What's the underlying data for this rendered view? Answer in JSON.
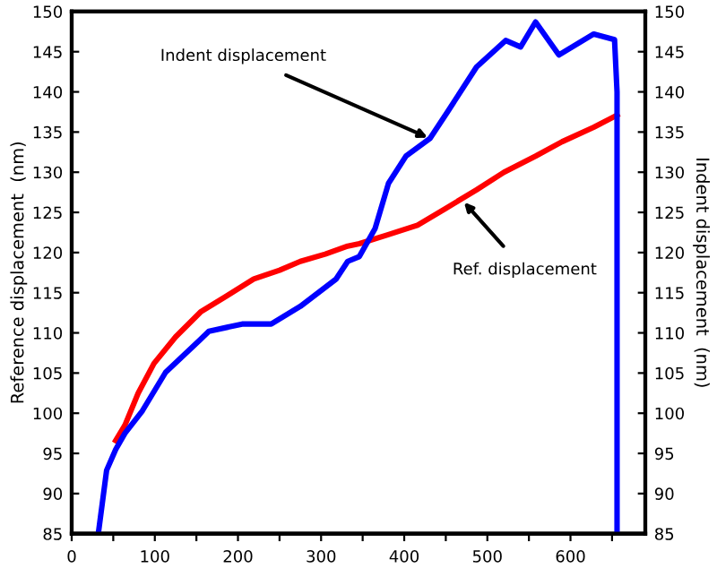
{
  "chart_data": {
    "type": "line",
    "ylabel": "Reference displacement  (nm)",
    "y2label": "Indent displacement  (nm)",
    "xlim": [
      0,
      690
    ],
    "ylim": [
      85,
      150
    ],
    "y2lim": [
      85,
      150
    ],
    "xticks": [
      0,
      {
        "value": 50,
        "label": null
      },
      100,
      {
        "value": 150,
        "label": null
      },
      200,
      {
        "value": 250,
        "label": null
      },
      300,
      {
        "value": 350,
        "label": null
      },
      400,
      {
        "value": 450,
        "label": null
      },
      500,
      {
        "value": 550,
        "label": null
      },
      600,
      {
        "value": 650,
        "label": null
      }
    ],
    "yticks": [
      85,
      90,
      95,
      100,
      105,
      110,
      115,
      120,
      125,
      130,
      135,
      140,
      145,
      150
    ],
    "y2ticks": [
      85,
      90,
      95,
      100,
      105,
      110,
      115,
      120,
      125,
      130,
      135,
      140,
      145,
      150
    ],
    "grid": false,
    "marker": "none",
    "line_style": "solid",
    "series": [
      {
        "color": "#ff0000",
        "x": [
          53,
          64,
          80,
          99,
          125,
          155,
          185,
          219,
          250,
          275,
          305,
          332,
          346,
          380,
          416,
          450,
          487,
          520,
          558,
          590,
          628,
          656
        ],
        "values": [
          96.6,
          98.5,
          102.5,
          106.2,
          109.5,
          112.6,
          114.5,
          116.7,
          117.8,
          118.9,
          119.8,
          120.8,
          121.1,
          122.2,
          123.4,
          125.5,
          127.8,
          130,
          132,
          133.8,
          135.6,
          137.1
        ]
      },
      {
        "color": "#0000ff",
        "axis": "y2",
        "x": [
          32,
          42,
          53,
          64,
          85,
          113,
          155,
          165,
          205,
          240,
          275,
          318,
          332,
          346,
          365,
          381,
          402,
          431,
          452,
          487,
          522,
          540,
          558,
          586,
          628,
          653,
          656,
          656
        ],
        "values": [
          85,
          92.9,
          95.5,
          97.5,
          100.3,
          105.1,
          109.2,
          110.2,
          111.1,
          111.1,
          113.3,
          116.7,
          118.9,
          119.5,
          123,
          128.6,
          132,
          134.2,
          137.5,
          143.1,
          146.4,
          145.6,
          148.7,
          144.6,
          147.2,
          146.5,
          140,
          85
        ]
      }
    ],
    "annotations": [
      {
        "text": "Indent displacement",
        "x": 431,
        "y": 134.2
      },
      {
        "text": "Ref. displacement",
        "x": 470,
        "y": 126.5
      }
    ]
  }
}
